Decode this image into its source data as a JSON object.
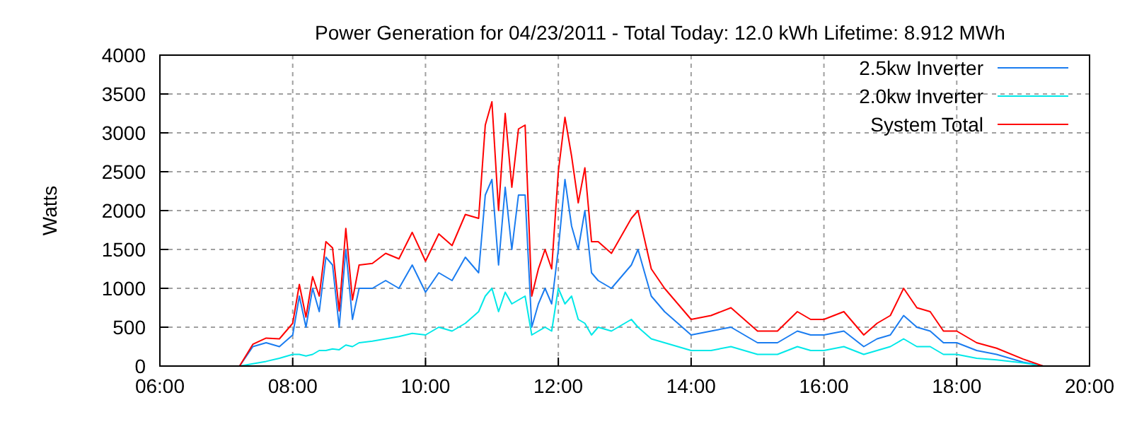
{
  "chart_data": {
    "type": "line",
    "title": "Power Generation for 04/23/2011 - Total Today: 12.0 kWh   Lifetime: 8.912 MWh",
    "ylabel": "Watts",
    "x": [
      7.2,
      7.4,
      7.6,
      7.8,
      8.0,
      8.1,
      8.2,
      8.3,
      8.4,
      8.5,
      8.6,
      8.7,
      8.8,
      8.9,
      9.0,
      9.2,
      9.4,
      9.6,
      9.8,
      10.0,
      10.2,
      10.4,
      10.6,
      10.8,
      10.9,
      11.0,
      11.1,
      11.2,
      11.3,
      11.4,
      11.5,
      11.6,
      11.7,
      11.8,
      11.9,
      12.0,
      12.1,
      12.2,
      12.3,
      12.4,
      12.5,
      12.6,
      12.8,
      13.0,
      13.1,
      13.2,
      13.4,
      13.6,
      13.8,
      14.0,
      14.3,
      14.6,
      15.0,
      15.3,
      15.6,
      15.8,
      16.0,
      16.3,
      16.6,
      16.8,
      17.0,
      17.2,
      17.4,
      17.6,
      17.8,
      18.0,
      18.3,
      18.6,
      19.0,
      19.3
    ],
    "series": [
      {
        "name": "2.5kw Inverter",
        "color": "#1a7cf0",
        "values": [
          0,
          250,
          300,
          250,
          400,
          900,
          500,
          1000,
          700,
          1400,
          1300,
          500,
          1500,
          600,
          1000,
          1000,
          1100,
          1000,
          1300,
          950,
          1200,
          1100,
          1400,
          1200,
          2200,
          2400,
          1300,
          2300,
          1500,
          2200,
          2200,
          500,
          800,
          1000,
          800,
          1500,
          2400,
          1800,
          1500,
          2000,
          1200,
          1100,
          1000,
          1200,
          1300,
          1500,
          900,
          700,
          550,
          400,
          450,
          500,
          300,
          300,
          450,
          400,
          400,
          450,
          250,
          350,
          400,
          650,
          500,
          450,
          300,
          300,
          200,
          150,
          50,
          0
        ]
      },
      {
        "name": "2.0kw Inverter",
        "color": "#00e8e8",
        "values": [
          0,
          30,
          60,
          100,
          150,
          150,
          130,
          150,
          200,
          200,
          220,
          210,
          270,
          250,
          300,
          320,
          350,
          380,
          420,
          400,
          500,
          450,
          550,
          700,
          900,
          1000,
          700,
          950,
          800,
          850,
          900,
          400,
          450,
          500,
          450,
          1000,
          800,
          900,
          600,
          550,
          400,
          500,
          450,
          550,
          600,
          500,
          350,
          300,
          250,
          200,
          200,
          250,
          150,
          150,
          250,
          200,
          200,
          250,
          150,
          200,
          250,
          350,
          250,
          250,
          150,
          150,
          100,
          80,
          40,
          0
        ]
      },
      {
        "name": "System Total",
        "color": "#ff0000",
        "values": [
          0,
          280,
          360,
          350,
          550,
          1050,
          630,
          1150,
          900,
          1600,
          1520,
          710,
          1770,
          850,
          1300,
          1320,
          1450,
          1380,
          1720,
          1350,
          1700,
          1550,
          1950,
          1900,
          3100,
          3400,
          2000,
          3250,
          2300,
          3050,
          3100,
          900,
          1250,
          1500,
          1250,
          2500,
          3200,
          2700,
          2100,
          2550,
          1600,
          1600,
          1450,
          1750,
          1900,
          2000,
          1250,
          1000,
          800,
          600,
          650,
          750,
          450,
          450,
          700,
          600,
          600,
          700,
          400,
          550,
          650,
          1000,
          750,
          700,
          450,
          450,
          300,
          230,
          90,
          0
        ]
      }
    ],
    "xlim": [
      6,
      20
    ],
    "xticks": [
      {
        "value": 6,
        "label": "06:00"
      },
      {
        "value": 8,
        "label": "08:00"
      },
      {
        "value": 10,
        "label": "10:00"
      },
      {
        "value": 12,
        "label": "12:00"
      },
      {
        "value": 14,
        "label": "14:00"
      },
      {
        "value": 16,
        "label": "16:00"
      },
      {
        "value": 18,
        "label": "18:00"
      },
      {
        "value": 20,
        "label": "20:00"
      }
    ],
    "ylim": [
      0,
      4000
    ],
    "yticks": [
      0,
      500,
      1000,
      1500,
      2000,
      2500,
      3000,
      3500,
      4000
    ],
    "grid": true,
    "legend": "top right",
    "line_style": "solid",
    "marker": "none"
  }
}
